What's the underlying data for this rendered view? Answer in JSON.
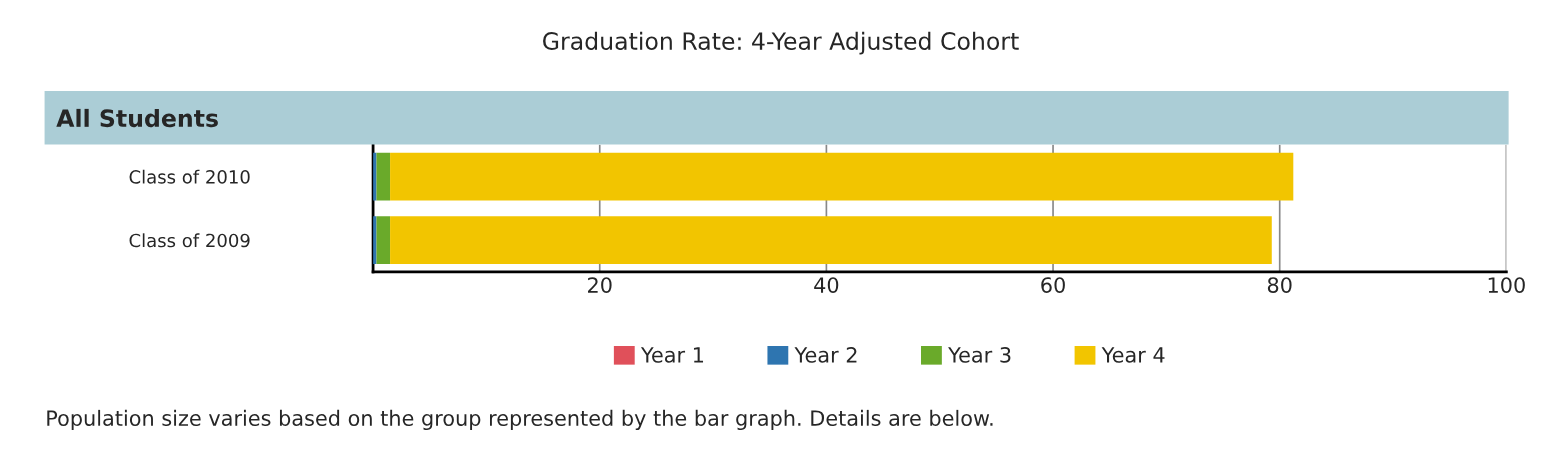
{
  "chart_data": {
    "type": "bar",
    "orientation": "horizontal",
    "stacked": true,
    "title": "Graduation Rate: 4-Year Adjusted Cohort",
    "subtitle": "All Students",
    "categories": [
      "Class of 2010",
      "Class of 2009"
    ],
    "series": [
      {
        "name": "Year 1",
        "color": "#e0505a",
        "values": [
          0,
          0
        ]
      },
      {
        "name": "Year 2",
        "color": "#2e75b0",
        "values": [
          0.3,
          0.3
        ]
      },
      {
        "name": "Year 3",
        "color": "#6aaa2a",
        "values": [
          1.2,
          1.2
        ]
      },
      {
        "name": "Year 4",
        "color": "#f2c500",
        "values": [
          79.7,
          77.8
        ]
      }
    ],
    "xlim": [
      0,
      100
    ],
    "xticks": [
      20,
      40,
      60,
      80,
      100
    ],
    "grid": "x",
    "legend": "bottom",
    "annotations": [
      "Population size varies based on the group represented by the bar graph. Details are below."
    ]
  }
}
